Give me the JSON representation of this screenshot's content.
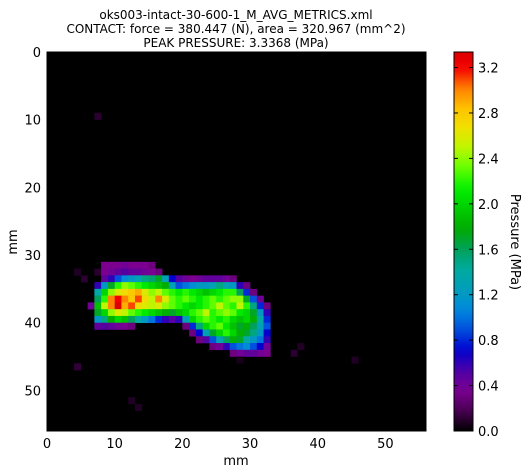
{
  "chart_data": {
    "type": "heatmap",
    "title_lines": [
      "oks003-intact-30-600-1_M_AVG_METRICS.xml",
      "CONTACT: force = 380.447 (N), area = 320.967 (mm^2)",
      "PEAK PRESSURE: 3.3368 (MPa)"
    ],
    "xlabel": "mm",
    "ylabel": "mm",
    "xlim": [
      0,
      56
    ],
    "ylim": [
      56,
      0
    ],
    "x_ticks": [
      "0",
      "10",
      "20",
      "30",
      "40",
      "50"
    ],
    "y_ticks": [
      "0",
      "10",
      "20",
      "30",
      "40",
      "50"
    ],
    "colorbar": {
      "label": "Pressure (MPa)",
      "range": [
        0,
        3.3368
      ],
      "ticks": [
        "0.0",
        "0.4",
        "0.8",
        "1.2",
        "1.6",
        "2.0",
        "2.4",
        "2.8",
        "3.2"
      ],
      "colormap": "nipy_spectral"
    },
    "background_value": 0,
    "cell_size_mm": 1,
    "cells": [
      [
        7,
        9,
        0.1
      ],
      [
        8,
        31,
        0.35
      ],
      [
        9,
        31,
        0.35
      ],
      [
        10,
        31,
        0.35
      ],
      [
        11,
        31,
        0.4
      ],
      [
        12,
        31,
        0.35
      ],
      [
        13,
        31,
        0.35
      ],
      [
        14,
        31,
        0.35
      ],
      [
        15,
        31,
        0.3
      ],
      [
        4,
        32,
        0.08
      ],
      [
        7,
        32,
        0.1
      ],
      [
        8,
        32,
        0.35
      ],
      [
        9,
        32,
        0.4
      ],
      [
        10,
        32,
        0.45
      ],
      [
        11,
        32,
        0.5
      ],
      [
        12,
        32,
        0.45
      ],
      [
        13,
        32,
        0.45
      ],
      [
        14,
        32,
        0.4
      ],
      [
        15,
        32,
        0.35
      ],
      [
        16,
        32,
        0.3
      ],
      [
        5,
        33,
        0.1
      ],
      [
        8,
        33,
        0.45
      ],
      [
        9,
        33,
        0.6
      ],
      [
        10,
        33,
        0.9
      ],
      [
        11,
        33,
        1.1
      ],
      [
        12,
        33,
        1.2
      ],
      [
        13,
        33,
        1.3
      ],
      [
        14,
        33,
        1.5
      ],
      [
        15,
        33,
        1.55
      ],
      [
        16,
        33,
        1.7
      ],
      [
        17,
        33,
        1.3
      ],
      [
        18,
        33,
        0.7
      ],
      [
        19,
        33,
        0.5
      ],
      [
        20,
        33,
        0.4
      ],
      [
        21,
        33,
        0.35
      ],
      [
        22,
        33,
        0.4
      ],
      [
        23,
        33,
        0.45
      ],
      [
        24,
        33,
        0.45
      ],
      [
        25,
        33,
        0.45
      ],
      [
        26,
        33,
        0.4
      ],
      [
        27,
        33,
        0.3
      ],
      [
        7,
        34,
        0.6
      ],
      [
        8,
        34,
        1.2
      ],
      [
        9,
        34,
        1.7
      ],
      [
        10,
        34,
        2.2
      ],
      [
        11,
        34,
        2.4
      ],
      [
        12,
        34,
        2.3
      ],
      [
        13,
        34,
        2.2
      ],
      [
        14,
        34,
        2.1
      ],
      [
        15,
        34,
        2.0
      ],
      [
        16,
        34,
        1.9
      ],
      [
        17,
        34,
        1.8
      ],
      [
        18,
        34,
        1.3
      ],
      [
        19,
        34,
        0.9
      ],
      [
        20,
        34,
        1.0
      ],
      [
        21,
        34,
        1.1
      ],
      [
        22,
        34,
        1.2
      ],
      [
        23,
        34,
        1.2
      ],
      [
        24,
        34,
        1.3
      ],
      [
        25,
        34,
        1.5
      ],
      [
        26,
        34,
        1.3
      ],
      [
        27,
        34,
        1.2
      ],
      [
        28,
        34,
        0.6
      ],
      [
        29,
        34,
        0.3
      ],
      [
        7,
        35,
        1.4
      ],
      [
        8,
        35,
        2.0
      ],
      [
        9,
        35,
        2.4
      ],
      [
        10,
        35,
        2.6
      ],
      [
        11,
        35,
        2.7
      ],
      [
        12,
        35,
        2.8
      ],
      [
        13,
        35,
        2.9
      ],
      [
        14,
        35,
        2.6
      ],
      [
        15,
        35,
        2.4
      ],
      [
        16,
        35,
        2.5
      ],
      [
        17,
        35,
        2.3
      ],
      [
        18,
        35,
        2.2
      ],
      [
        19,
        35,
        2.1
      ],
      [
        20,
        35,
        2.2
      ],
      [
        21,
        35,
        2.1
      ],
      [
        22,
        35,
        2.0
      ],
      [
        23,
        35,
        1.9
      ],
      [
        24,
        35,
        2.0
      ],
      [
        25,
        35,
        2.1
      ],
      [
        26,
        35,
        2.2
      ],
      [
        27,
        35,
        2.2
      ],
      [
        28,
        35,
        1.6
      ],
      [
        29,
        35,
        0.8
      ],
      [
        30,
        35,
        0.3
      ],
      [
        7,
        36,
        1.6
      ],
      [
        8,
        36,
        2.2
      ],
      [
        9,
        36,
        3.0
      ],
      [
        10,
        36,
        3.2
      ],
      [
        11,
        36,
        3.0
      ],
      [
        12,
        36,
        2.8
      ],
      [
        13,
        36,
        3.1
      ],
      [
        14,
        36,
        2.7
      ],
      [
        15,
        36,
        2.5
      ],
      [
        16,
        36,
        3.0
      ],
      [
        17,
        36,
        2.6
      ],
      [
        18,
        36,
        2.3
      ],
      [
        19,
        36,
        2.2
      ],
      [
        20,
        36,
        2.3
      ],
      [
        21,
        36,
        2.2
      ],
      [
        22,
        36,
        2.1
      ],
      [
        23,
        36,
        2.2
      ],
      [
        24,
        36,
        2.3
      ],
      [
        25,
        36,
        2.2
      ],
      [
        26,
        36,
        2.3
      ],
      [
        27,
        36,
        2.4
      ],
      [
        28,
        36,
        2.4
      ],
      [
        29,
        36,
        1.7
      ],
      [
        30,
        36,
        0.9
      ],
      [
        31,
        36,
        0.4
      ],
      [
        6,
        37,
        0.4
      ],
      [
        7,
        37,
        1.9
      ],
      [
        8,
        37,
        2.5
      ],
      [
        9,
        37,
        3.0
      ],
      [
        10,
        37,
        3.3368
      ],
      [
        11,
        37,
        2.9
      ],
      [
        12,
        37,
        3.1
      ],
      [
        13,
        37,
        2.7
      ],
      [
        14,
        37,
        2.6
      ],
      [
        15,
        37,
        2.5
      ],
      [
        16,
        37,
        2.6
      ],
      [
        17,
        37,
        2.4
      ],
      [
        18,
        37,
        2.3
      ],
      [
        19,
        37,
        2.2
      ],
      [
        20,
        37,
        2.1
      ],
      [
        21,
        37,
        2.0
      ],
      [
        22,
        37,
        2.1
      ],
      [
        23,
        37,
        2.2
      ],
      [
        24,
        37,
        2.3
      ],
      [
        25,
        37,
        2.5
      ],
      [
        26,
        37,
        2.3
      ],
      [
        27,
        37,
        2.2
      ],
      [
        28,
        37,
        2.5
      ],
      [
        29,
        37,
        2.2
      ],
      [
        30,
        37,
        1.5
      ],
      [
        31,
        37,
        0.8
      ],
      [
        32,
        37,
        0.3
      ],
      [
        7,
        38,
        1.7
      ],
      [
        8,
        38,
        2.0
      ],
      [
        9,
        38,
        2.4
      ],
      [
        10,
        38,
        2.6
      ],
      [
        11,
        38,
        2.5
      ],
      [
        12,
        38,
        2.3
      ],
      [
        13,
        38,
        2.2
      ],
      [
        14,
        38,
        2.1
      ],
      [
        15,
        38,
        2.0
      ],
      [
        16,
        38,
        1.9
      ],
      [
        17,
        38,
        1.8
      ],
      [
        18,
        38,
        1.7
      ],
      [
        19,
        38,
        1.9
      ],
      [
        20,
        38,
        2.0
      ],
      [
        21,
        38,
        2.2
      ],
      [
        22,
        38,
        2.3
      ],
      [
        23,
        38,
        2.5
      ],
      [
        24,
        38,
        2.2
      ],
      [
        25,
        38,
        2.3
      ],
      [
        26,
        38,
        2.4
      ],
      [
        27,
        38,
        2.3
      ],
      [
        28,
        38,
        2.1
      ],
      [
        29,
        38,
        2.0
      ],
      [
        30,
        38,
        1.7
      ],
      [
        31,
        38,
        1.2
      ],
      [
        32,
        38,
        0.6
      ],
      [
        7,
        39,
        1.2
      ],
      [
        8,
        39,
        1.5
      ],
      [
        9,
        39,
        1.8
      ],
      [
        10,
        39,
        2.0
      ],
      [
        11,
        39,
        1.9
      ],
      [
        12,
        39,
        1.6
      ],
      [
        13,
        39,
        1.4
      ],
      [
        14,
        39,
        1.2
      ],
      [
        15,
        39,
        1.0
      ],
      [
        16,
        39,
        0.8
      ],
      [
        17,
        39,
        0.6
      ],
      [
        18,
        39,
        0.5
      ],
      [
        19,
        39,
        0.6
      ],
      [
        20,
        39,
        1.3
      ],
      [
        21,
        39,
        2.0
      ],
      [
        22,
        39,
        2.2
      ],
      [
        23,
        39,
        2.3
      ],
      [
        24,
        39,
        2.2
      ],
      [
        25,
        39,
        2.1
      ],
      [
        26,
        39,
        2.2
      ],
      [
        27,
        39,
        2.0
      ],
      [
        28,
        39,
        1.9
      ],
      [
        29,
        39,
        2.0
      ],
      [
        30,
        39,
        1.8
      ],
      [
        31,
        39,
        1.4
      ],
      [
        32,
        39,
        0.8
      ],
      [
        7,
        40,
        0.45
      ],
      [
        8,
        40,
        0.5
      ],
      [
        9,
        40,
        0.45
      ],
      [
        10,
        40,
        0.4
      ],
      [
        11,
        40,
        0.35
      ],
      [
        12,
        40,
        0.3
      ],
      [
        20,
        40,
        0.3
      ],
      [
        21,
        40,
        0.8
      ],
      [
        22,
        40,
        1.5
      ],
      [
        23,
        40,
        2.0
      ],
      [
        24,
        40,
        2.2
      ],
      [
        25,
        40,
        2.3
      ],
      [
        26,
        40,
        2.1
      ],
      [
        27,
        40,
        1.9
      ],
      [
        28,
        40,
        1.7
      ],
      [
        29,
        40,
        1.8
      ],
      [
        30,
        40,
        1.6
      ],
      [
        31,
        40,
        1.3
      ],
      [
        32,
        40,
        0.9
      ],
      [
        21,
        41,
        0.3
      ],
      [
        22,
        41,
        0.7
      ],
      [
        23,
        41,
        1.3
      ],
      [
        24,
        41,
        1.7
      ],
      [
        25,
        41,
        2.0
      ],
      [
        26,
        41,
        2.2
      ],
      [
        27,
        41,
        2.0
      ],
      [
        28,
        41,
        1.8
      ],
      [
        29,
        41,
        1.7
      ],
      [
        30,
        41,
        1.5
      ],
      [
        31,
        41,
        1.2
      ],
      [
        32,
        41,
        0.7
      ],
      [
        22,
        42,
        0.3
      ],
      [
        23,
        42,
        0.5
      ],
      [
        24,
        42,
        0.9
      ],
      [
        25,
        42,
        1.3
      ],
      [
        26,
        42,
        1.6
      ],
      [
        27,
        42,
        1.8
      ],
      [
        28,
        42,
        1.7
      ],
      [
        29,
        42,
        1.4
      ],
      [
        30,
        42,
        1.2
      ],
      [
        31,
        42,
        1.0
      ],
      [
        32,
        42,
        0.6
      ],
      [
        24,
        43,
        0.3
      ],
      [
        25,
        43,
        0.4
      ],
      [
        26,
        43,
        0.6
      ],
      [
        27,
        43,
        0.9
      ],
      [
        28,
        43,
        1.0
      ],
      [
        29,
        43,
        1.1
      ],
      [
        30,
        43,
        0.9
      ],
      [
        31,
        43,
        0.7
      ],
      [
        32,
        43,
        0.4
      ],
      [
        37,
        43,
        0.08
      ],
      [
        27,
        44,
        0.3
      ],
      [
        28,
        44,
        0.4
      ],
      [
        29,
        44,
        0.45
      ],
      [
        30,
        44,
        0.45
      ],
      [
        31,
        44,
        0.4
      ],
      [
        32,
        44,
        0.35
      ],
      [
        36,
        44,
        0.1
      ],
      [
        45,
        45,
        0.08
      ],
      [
        28,
        45,
        0.06
      ],
      [
        4,
        46,
        0.12
      ],
      [
        12,
        51,
        0.08
      ],
      [
        13,
        52,
        0.08
      ]
    ]
  }
}
